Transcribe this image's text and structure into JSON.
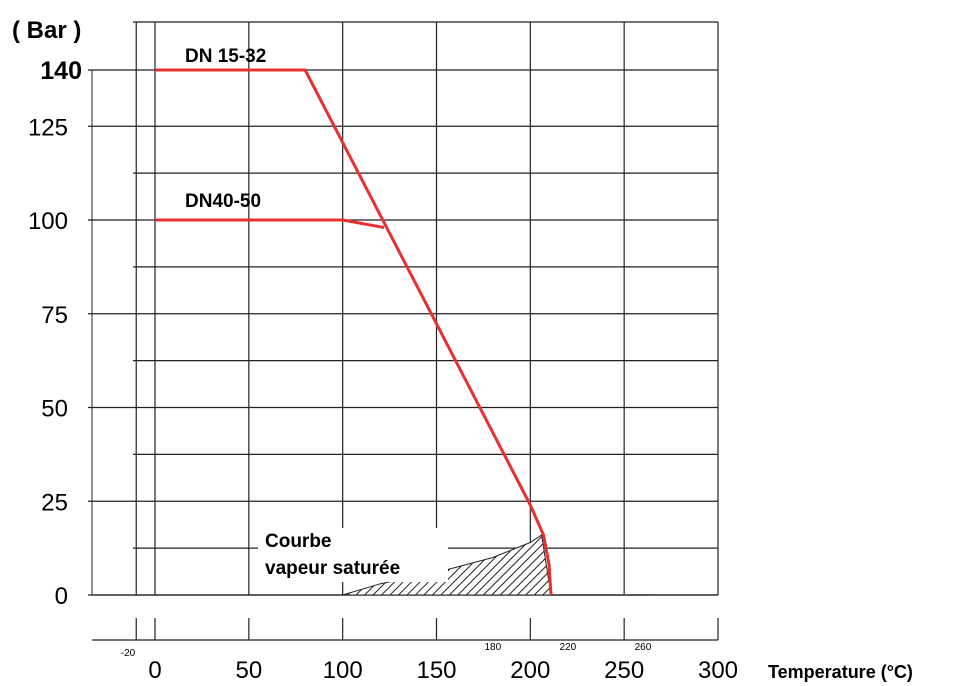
{
  "chart_data": {
    "type": "line",
    "y_unit": "( Bar )",
    "x_unit": "Temperature (°C)",
    "xlim": [
      -20,
      300
    ],
    "ylim": [
      0,
      140
    ],
    "x_ticks": [
      "0",
      "50",
      "100",
      "150",
      "200",
      "250",
      "300"
    ],
    "x_minor_ticks": [
      "-20",
      "180",
      "220",
      "260"
    ],
    "y_ticks": [
      "0",
      "25",
      "50",
      "75",
      "100",
      "125",
      "140"
    ],
    "grid": true,
    "series": [
      {
        "name": "DN 15-32",
        "color": "#e8312f",
        "points": [
          [
            0,
            140
          ],
          [
            80,
            140
          ],
          [
            200,
            24
          ],
          [
            207,
            16
          ],
          [
            210,
            8
          ],
          [
            211,
            0
          ]
        ]
      },
      {
        "name": "DN40-50",
        "color": "#e8312f",
        "points": [
          [
            0,
            100
          ],
          [
            100,
            100
          ],
          [
            122,
            98
          ]
        ]
      }
    ],
    "annotation": {
      "line1": "Courbe",
      "line2": "vapeur saturée"
    }
  }
}
